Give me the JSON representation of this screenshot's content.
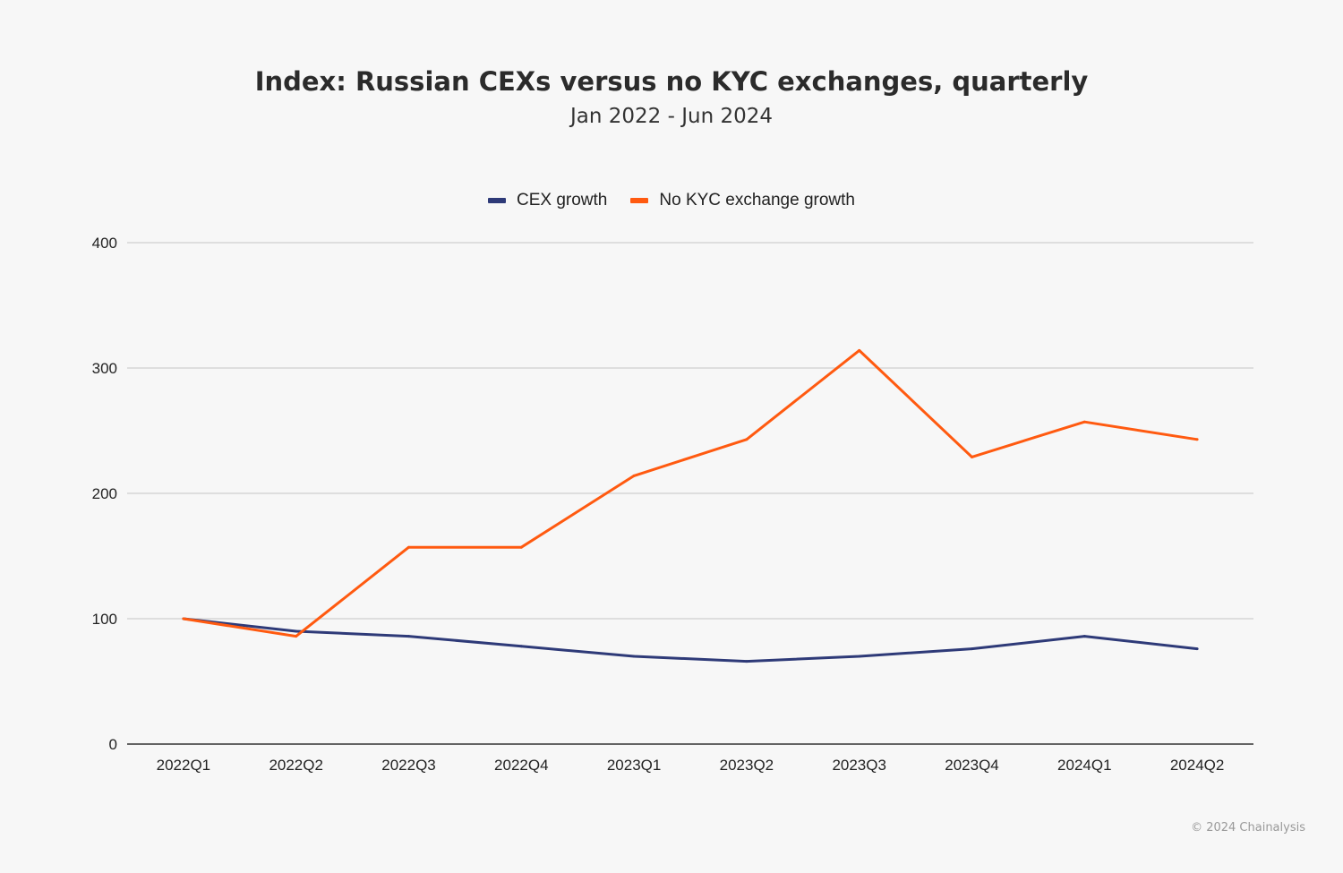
{
  "chart_data": {
    "type": "line",
    "title": "Index: Russian CEXs versus no KYC exchanges, quarterly",
    "subtitle": "Jan 2022 - Jun 2024",
    "xlabel": "",
    "ylabel": "",
    "categories": [
      "2022Q1",
      "2022Q2",
      "2022Q3",
      "2022Q4",
      "2023Q1",
      "2023Q2",
      "2023Q3",
      "2023Q4",
      "2024Q1",
      "2024Q2"
    ],
    "ylim": [
      0,
      400
    ],
    "yticks": [
      0,
      100,
      200,
      300,
      400
    ],
    "grid": true,
    "legend_position": "top",
    "series": [
      {
        "name": "CEX growth",
        "color": "#2e3a78",
        "values": [
          100,
          90,
          86,
          78,
          70,
          66,
          70,
          76,
          86,
          76
        ]
      },
      {
        "name": "No KYC exchange growth",
        "color": "#ff5a10",
        "values": [
          100,
          86,
          157,
          157,
          214,
          243,
          314,
          229,
          257,
          243
        ]
      }
    ]
  },
  "footer": "© 2024 Chainalysis"
}
